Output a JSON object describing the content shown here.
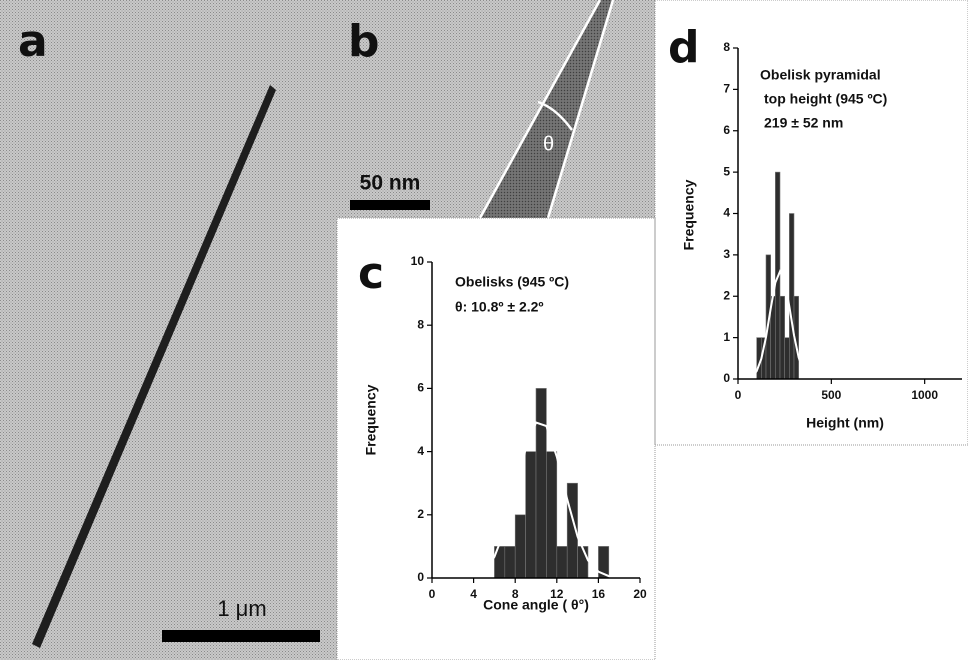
{
  "panels": {
    "a": {
      "label": "a",
      "scale_bar": "1 μm"
    },
    "b": {
      "label": "b",
      "scale_bar": "50 nm",
      "angle_symbol": "θ"
    }
  },
  "chart_data": [
    {
      "type": "histogram",
      "label": "c",
      "annotation": [
        "Obelisks (945 ºC)",
        "θ: 10.8º ± 2.2º"
      ],
      "x_label": "Cone angle ( θ°)",
      "y_label": "Frequency",
      "bins": [
        6,
        7,
        8,
        9,
        10,
        11,
        12,
        13,
        14,
        15,
        16,
        17
      ],
      "values": [
        1,
        1,
        2,
        4,
        6,
        4,
        1,
        3,
        1,
        0,
        1
      ],
      "color": "#2e2e2e",
      "xlim": [
        0,
        20
      ],
      "ylim": [
        0,
        10
      ],
      "xticks": [
        0,
        4,
        8,
        12,
        16,
        20
      ],
      "yticks": [
        0,
        2,
        4,
        6,
        8,
        10
      ],
      "fit": {
        "color": "#ffffff",
        "x": [
          0,
          1,
          2,
          3,
          4,
          5,
          6,
          7,
          8,
          9,
          10,
          11,
          12,
          13,
          14,
          15,
          16,
          17,
          18,
          19,
          20
        ],
        "y": [
          0,
          0,
          0,
          0.01,
          0.07,
          0.25,
          0.67,
          1.52,
          2.76,
          4.08,
          4.92,
          4.81,
          3.84,
          2.49,
          1.31,
          0.56,
          0.2,
          0.06,
          0.01,
          0,
          0
        ]
      }
    },
    {
      "type": "histogram",
      "label": "d",
      "annotation": [
        "Obelisk pyramidal",
        "top height (945 ºC)",
        "219 ± 52 nm"
      ],
      "x_label": "Height (nm)",
      "y_label": "Frequency",
      "bins": [
        100,
        125,
        150,
        175,
        200,
        225,
        250,
        275,
        300,
        325
      ],
      "values": [
        1,
        1,
        3,
        2,
        5,
        2,
        1,
        4,
        2
      ],
      "color": "#2e2e2e",
      "xlim": [
        0,
        1200
      ],
      "ylim": [
        0,
        8
      ],
      "xticks": [
        0,
        500,
        1000
      ],
      "yticks": [
        0,
        1,
        2,
        3,
        4,
        5,
        6,
        7,
        8
      ],
      "fit": {
        "color": "#ffffff",
        "x": [
          75,
          100,
          125,
          150,
          175,
          200,
          225,
          250,
          275,
          300,
          325,
          350,
          375
        ],
        "y": [
          0.06,
          0.19,
          0.49,
          1.01,
          1.7,
          2.33,
          2.6,
          2.36,
          1.75,
          1.06,
          0.52,
          0.21,
          0.07
        ]
      }
    }
  ]
}
